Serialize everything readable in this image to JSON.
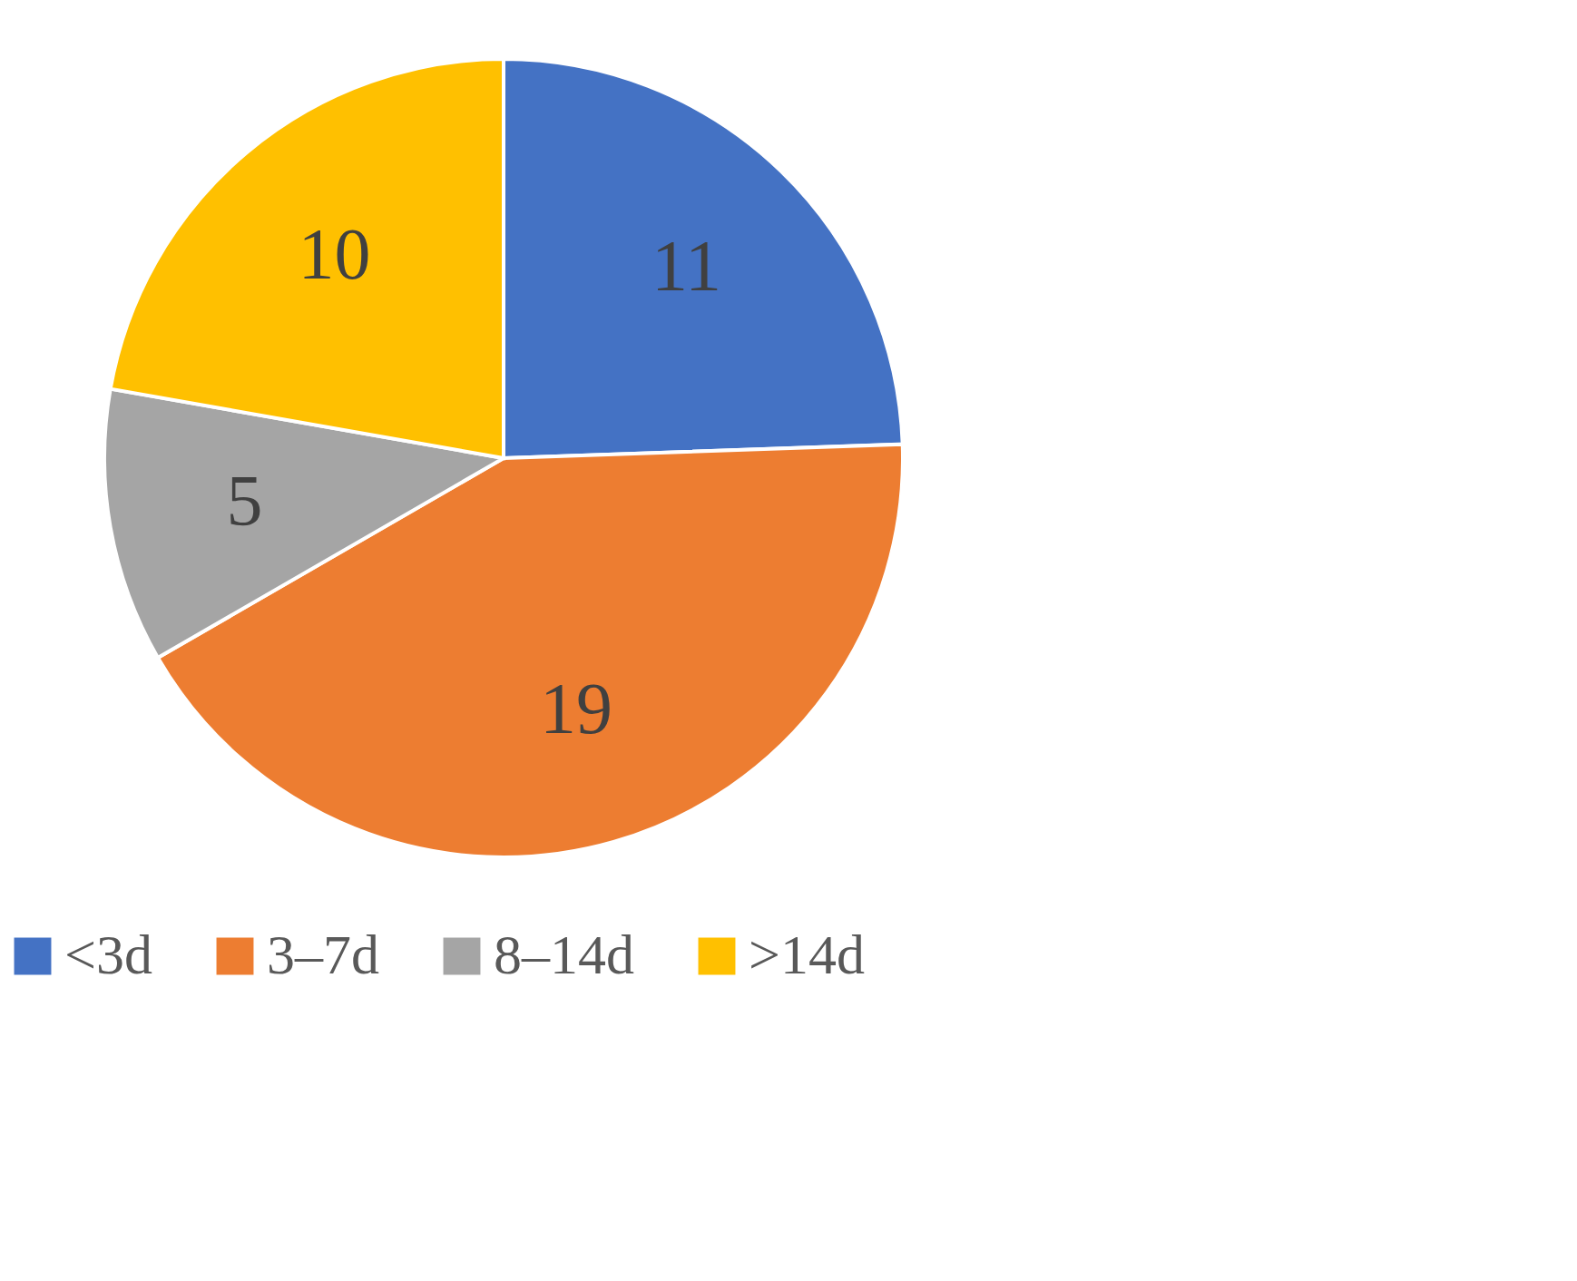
{
  "chart_data": {
    "type": "pie",
    "categories": [
      "<3d",
      "3–7d",
      "8–14d",
      ">14d"
    ],
    "values": [
      11,
      19,
      5,
      10
    ],
    "colors": [
      "#4472c4",
      "#ed7d31",
      "#a5a5a5",
      "#ffc000"
    ],
    "data_labels": true,
    "legend": "bottom"
  }
}
